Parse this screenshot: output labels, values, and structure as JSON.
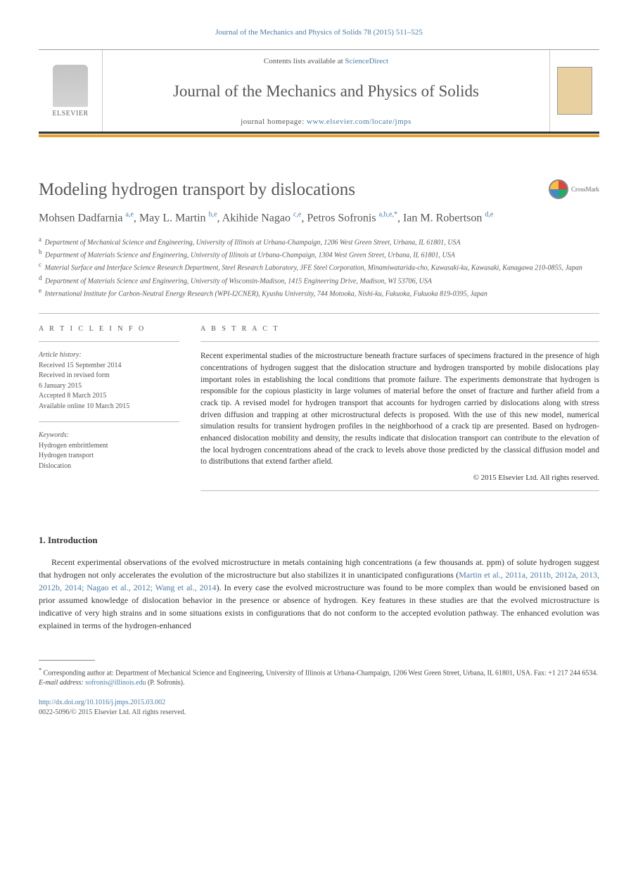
{
  "top_reference": "Journal of the Mechanics and Physics of Solids 78 (2015) 511–525",
  "header": {
    "contents_prefix": "Contents lists available at ",
    "contents_link": "ScienceDirect",
    "journal_name": "Journal of the Mechanics and Physics of Solids",
    "homepage_prefix": "journal homepage: ",
    "homepage_url": "www.elsevier.com/locate/jmps",
    "publisher_label": "ELSEVIER"
  },
  "crossmark_label": "CrossMark",
  "article_title": "Modeling hydrogen transport by dislocations",
  "authors": [
    {
      "name": "Mohsen Dadfarnia",
      "aff": "a,e",
      "corr": false
    },
    {
      "name": "May L. Martin",
      "aff": "b,e",
      "corr": false
    },
    {
      "name": "Akihide Nagao",
      "aff": "c,e",
      "corr": false
    },
    {
      "name": "Petros Sofronis",
      "aff": "a,b,e,",
      "corr": true
    },
    {
      "name": "Ian M. Robertson",
      "aff": "d,e",
      "corr": false
    }
  ],
  "affiliations": [
    {
      "key": "a",
      "text": "Department of Mechanical Science and Engineering, University of Illinois at Urbana-Champaign, 1206 West Green Street, Urbana, IL 61801, USA"
    },
    {
      "key": "b",
      "text": "Department of Materials Science and Engineering, University of Illinois at Urbana-Champaign, 1304 West Green Street, Urbana, IL 61801, USA"
    },
    {
      "key": "c",
      "text": "Material Surface and Interface Science Research Department, Steel Research Laboratory, JFE Steel Corporation, Minamiwatarida-cho, Kawasaki-ku, Kawasaki, Kanagawa 210-0855, Japan"
    },
    {
      "key": "d",
      "text": "Department of Materials Science and Engineering, University of Wisconsin-Madison, 1415 Engineering Drive, Madison, WI 53706, USA"
    },
    {
      "key": "e",
      "text": "International Institute for Carbon-Neutral Energy Research (WPI-I2CNER), Kyushu University, 744 Motooka, Nishi-ku, Fukuoka, Fukuoka 819-0395, Japan"
    }
  ],
  "article_info": {
    "heading": "A R T I C L E  I N F O",
    "history_label": "Article history:",
    "history": [
      "Received 15 September 2014",
      "Received in revised form",
      "6 January 2015",
      "Accepted 8 March 2015",
      "Available online 10 March 2015"
    ],
    "keywords_label": "Keywords:",
    "keywords": [
      "Hydrogen embrittlement",
      "Hydrogen transport",
      "Dislocation"
    ]
  },
  "abstract": {
    "heading": "A B S T R A C T",
    "text": "Recent experimental studies of the microstructure beneath fracture surfaces of specimens fractured in the presence of high concentrations of hydrogen suggest that the dislocation structure and hydrogen transported by mobile dislocations play important roles in establishing the local conditions that promote failure. The experiments demonstrate that hydrogen is responsible for the copious plasticity in large volumes of material before the onset of fracture and further afield from a crack tip. A revised model for hydrogen transport that accounts for hydrogen carried by dislocations along with stress driven diffusion and trapping at other microstructural defects is proposed. With the use of this new model, numerical simulation results for transient hydrogen profiles in the neighborhood of a crack tip are presented. Based on hydrogen-enhanced dislocation mobility and density, the results indicate that dislocation transport can contribute to the elevation of the local hydrogen concentrations ahead of the crack to levels above those predicted by the classical diffusion model and to distributions that extend farther afield.",
    "copyright": "© 2015 Elsevier Ltd. All rights reserved."
  },
  "section_1": {
    "title": "1.  Introduction",
    "paragraph": "Recent experimental observations of the evolved microstructure in metals containing high concentrations (a few thousands at. ppm) of solute hydrogen suggest that hydrogen not only accelerates the evolution of the microstructure but also stabilizes it in unanticipated configurations (",
    "refs": "Martin et al., 2011a, 2011b, 2012a, 2013, 2012b, 2014; Nagao et al., 2012; Wang et al., 2014",
    "paragraph_cont": "). In every case the evolved microstructure was found to be more complex than would be envisioned based on prior assumed knowledge of dislocation behavior in the presence or absence of hydrogen. Key features in these studies are that the evolved microstructure is indicative of very high strains and in some situations exists in configurations that do not conform to the accepted evolution pathway. The enhanced evolution was explained in terms of the hydrogen-enhanced"
  },
  "footnotes": {
    "corresponding": "Corresponding author at: Department of Mechanical Science and Engineering, University of Illinois at Urbana-Champaign, 1206 West Green Street, Urbana, IL 61801, USA.  Fax: +1 217 244 6534.",
    "email_label": "E-mail address: ",
    "email": "sofronis@illinois.edu",
    "email_suffix": " (P. Sofronis)."
  },
  "doi": {
    "url": "http://dx.doi.org/10.1016/j.jmps.2015.03.002",
    "issn_line": "0022-5096/© 2015 Elsevier Ltd. All rights reserved."
  },
  "colors": {
    "link": "#4a7ba6",
    "orange_bar": "#e8a030",
    "text_gray": "#555555",
    "border": "#bbbbbb"
  }
}
